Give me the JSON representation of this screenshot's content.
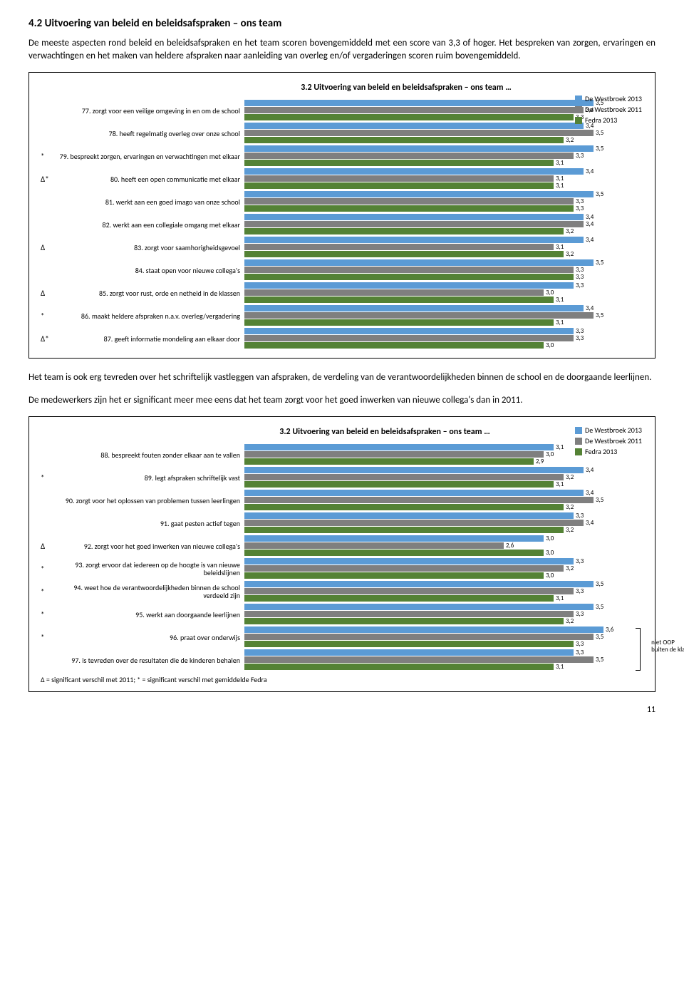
{
  "section_heading": "4.2  Uitvoering van beleid en beleidsafspraken – ons team",
  "para1": "De meeste aspecten rond beleid en beleidsafspraken en het team scoren bovengemiddeld met een score van 3,3 of hoger. Het bespreken van zorgen, ervaringen en verwachtingen en het maken van heldere afspraken naar aanleiding van overleg en/of vergaderingen scoren ruim bovengemiddeld.",
  "para2": "Het team is ook erg tevreden over het schriftelijk vastleggen van afspraken, de verdeling van de verantwoordelijkheden binnen de school en de doorgaande leerlijnen.",
  "para3": "De medewerkers zijn het er significant meer mee eens dat het team zorgt voor het goed inwerken van nieuwe collega's dan in 2011.",
  "chart1": {
    "title": "3.2 Uitvoering van beleid en beleidsafspraken – ons team …",
    "legend": [
      {
        "label": "De Westbroek 2013",
        "color": "#5b9bd5"
      },
      {
        "label": "De Westbroek 2011",
        "color": "#7f7f7f"
      },
      {
        "label": "Fedra 2013",
        "color": "#548235"
      }
    ],
    "max": 4.0,
    "colors": [
      "#5b9bd5",
      "#7f7f7f",
      "#548235"
    ],
    "rows": [
      {
        "marker": "",
        "label": "77. zorgt voor een veilige omgeving in en om de school",
        "vals": [
          "3,5",
          "3,4",
          "3,3"
        ]
      },
      {
        "marker": "",
        "label": "78. heeft regelmatig overleg over onze school",
        "vals": [
          "3,4",
          "3,5",
          "3,2"
        ]
      },
      {
        "marker": "*",
        "label": "79. bespreekt zorgen, ervaringen en verwachtingen met elkaar",
        "vals": [
          "3,5",
          "3,3",
          "3,1"
        ]
      },
      {
        "marker": "Δ*",
        "label": "80. heeft een open communicatie met elkaar",
        "vals": [
          "3,4",
          "3,1",
          "3,1"
        ]
      },
      {
        "marker": "",
        "label": "81. werkt aan een goed imago van onze school",
        "vals": [
          "3,5",
          "3,3",
          "3,3"
        ]
      },
      {
        "marker": "",
        "label": "82. werkt aan een collegiale omgang met elkaar",
        "vals": [
          "3,4",
          "3,4",
          "3,2"
        ]
      },
      {
        "marker": "Δ",
        "label": "83. zorgt voor saamhorigheidsgevoel",
        "vals": [
          "3,4",
          "3,1",
          "3,2"
        ]
      },
      {
        "marker": "",
        "label": "84. staat open voor nieuwe collega's",
        "vals": [
          "3,5",
          "3,3",
          "3,3"
        ]
      },
      {
        "marker": "Δ",
        "label": "85. zorgt voor rust, orde en netheid in de klassen",
        "vals": [
          "3,3",
          "3,0",
          "3,1"
        ]
      },
      {
        "marker": "*",
        "label": "86. maakt heldere afspraken n.a.v. overleg/vergadering",
        "vals": [
          "3,4",
          "3,5",
          "3,1"
        ]
      },
      {
        "marker": "Δ*",
        "label": "87. geeft informatie mondeling aan elkaar door",
        "vals": [
          "3,3",
          "3,3",
          "3,0"
        ]
      }
    ]
  },
  "chart2": {
    "title": "3.2 Uitvoering van beleid en beleidsafspraken – ons team …",
    "legend": [
      {
        "label": "De Westbroek 2013",
        "color": "#5b9bd5"
      },
      {
        "label": "De Westbroek 2011",
        "color": "#7f7f7f"
      },
      {
        "label": "Fedra 2013",
        "color": "#548235"
      }
    ],
    "max": 4.0,
    "colors": [
      "#5b9bd5",
      "#7f7f7f",
      "#548235"
    ],
    "rows": [
      {
        "marker": "",
        "label": "88. bespreekt fouten zonder elkaar aan te vallen",
        "vals": [
          "3,1",
          "3,0",
          "2,9"
        ]
      },
      {
        "marker": "*",
        "label": "89. legt afspraken schriftelijk vast",
        "vals": [
          "3,4",
          "3,2",
          "3,1"
        ]
      },
      {
        "marker": "",
        "label": "90. zorgt voor het oplossen van problemen tussen leerlingen",
        "vals": [
          "3,4",
          "3,5",
          "3,2"
        ]
      },
      {
        "marker": "",
        "label": "91. gaat pesten actief tegen",
        "vals": [
          "3,3",
          "3,4",
          "3,2"
        ]
      },
      {
        "marker": "Δ",
        "label": "92. zorgt voor het goed inwerken van nieuwe collega's",
        "vals": [
          "3,0",
          "2,6",
          "3,0"
        ]
      },
      {
        "marker": "*",
        "label": "93. zorgt ervoor dat iedereen op de hoogte is van nieuwe beleidslijnen",
        "vals": [
          "3,3",
          "3,2",
          "3,0"
        ]
      },
      {
        "marker": "*",
        "label": "94. weet hoe de verantwoordelijkheden binnen de school verdeeld zijn",
        "vals": [
          "3,5",
          "3,3",
          "3,1"
        ]
      },
      {
        "marker": "*",
        "label": "95. werkt aan doorgaande leerlijnen",
        "vals": [
          "3,5",
          "3,3",
          "3,2"
        ]
      },
      {
        "marker": "*",
        "label": "96. praat over onderwijs",
        "vals": [
          "3,6",
          "3,5",
          "3,3"
        ]
      },
      {
        "marker": "",
        "label": "97. is tevreden over de resultaten die de kinderen behalen",
        "vals": [
          "3,3",
          "3,5",
          "3,1"
        ]
      }
    ],
    "bracket_label": "niet OOP buiten de klas",
    "footnote": "Δ = significant verschil met 2011;  * = significant verschil met gemiddelde Fedra"
  },
  "page_number": "11"
}
